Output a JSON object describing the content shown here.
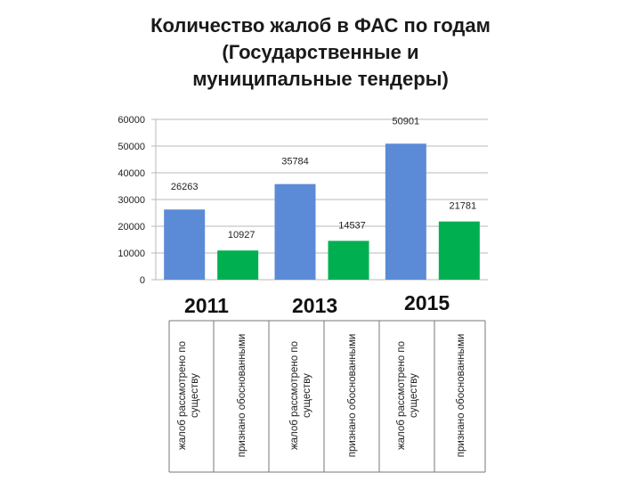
{
  "title": {
    "line1": "Количество жалоб в ФАС по годам",
    "line2": "(Государственные и",
    "line3": "муниципальные тендеры)"
  },
  "colors": {
    "series1": "#5b8bd6",
    "series2": "#00b050",
    "grid": "#b8b8b8",
    "table_border": "#777777"
  },
  "chart_data": {
    "type": "bar",
    "categories": [
      "2011",
      "2013",
      "2015"
    ],
    "series": [
      {
        "values": [
          26263,
          35784,
          50901
        ]
      },
      {
        "values": [
          10927,
          14537,
          21781
        ]
      }
    ],
    "ylim": [
      0,
      60000
    ],
    "yticks": [
      "0",
      "10000",
      "20000",
      "30000",
      "40000",
      "50000",
      "60000"
    ],
    "grid": true
  },
  "table": {
    "cells": [
      "жалоб рассмотрено по существу",
      "признано обоснованными",
      "жалоб рассмотрено по существу",
      "признано обоснованными",
      "жалоб рассмотрено по существу",
      "признано обоснованными"
    ]
  }
}
